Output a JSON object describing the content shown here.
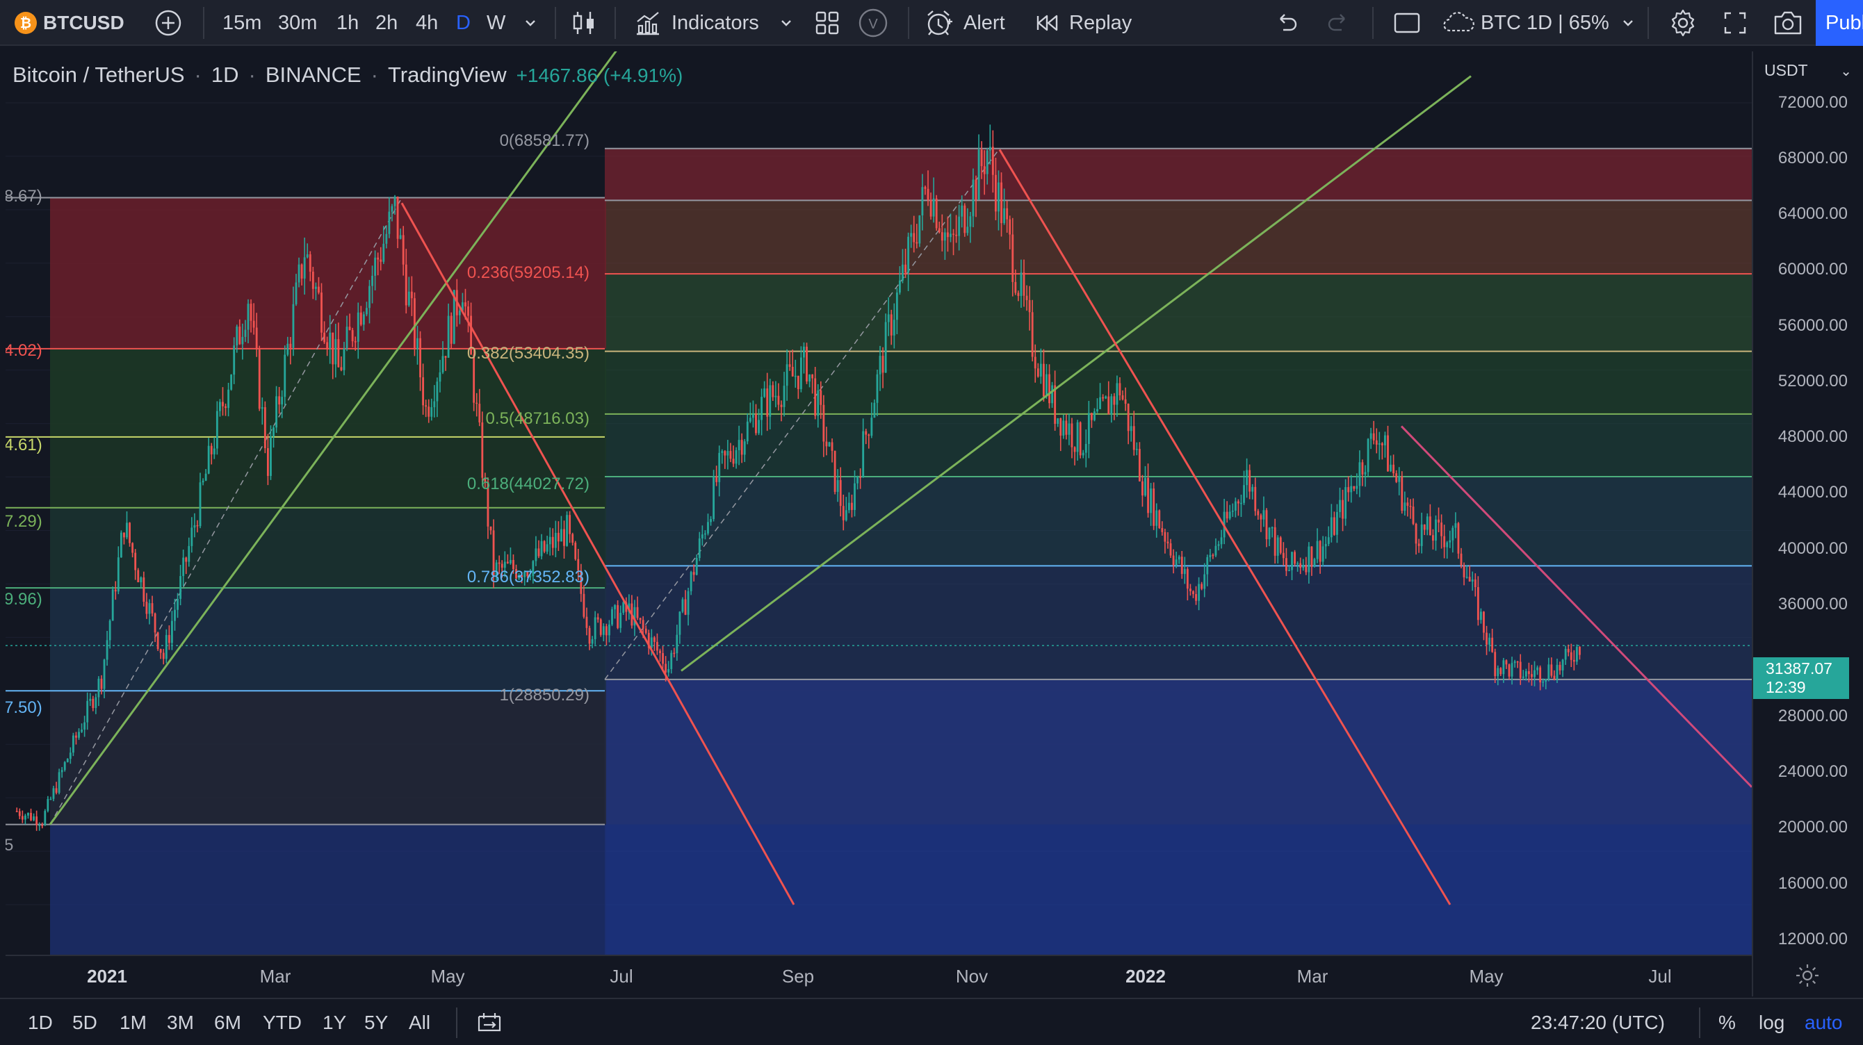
{
  "toolbar": {
    "symbol": "BTCUSD",
    "intervals": [
      "15m",
      "30m",
      "1h",
      "2h",
      "4h",
      "D",
      "W"
    ],
    "active_interval": "D",
    "indicators_label": "Indicators",
    "v_badge": "V",
    "alert_label": "Alert",
    "replay_label": "Replay",
    "layout_name": "BTC 1D | 65%",
    "publish_label": "Publish",
    "btc_glyph": "₿"
  },
  "legend": {
    "pair": "Bitcoin / TetherUS",
    "interval": "1D",
    "exchange": "BINANCE",
    "source": "TradingView",
    "change": "+1467.86 (+4.91%)",
    "sep": "·"
  },
  "fib_labels": {
    "level_0": "0(68581.77)",
    "level_0236": "0.236(59205.14)",
    "level_0382": "0.382(53404.35)",
    "level_05": "0.5(48716.03)",
    "level_0618": "0.618(44027.72)",
    "level_0786": "0.786(37352.83)",
    "level_1": "1(28850.29)",
    "left_1": "8.67)",
    "left_2": "4.02)",
    "left_3": "4.61)",
    "left_4": "7.29)",
    "left_5": "9.96)",
    "left_6": "7.50)",
    "left_7": "5"
  },
  "price_axis": {
    "currency": "USDT",
    "chevron": "⌄",
    "ticks": [
      "72000.00",
      "68000.00",
      "64000.00",
      "60000.00",
      "56000.00",
      "52000.00",
      "48000.00",
      "44000.00",
      "40000.00",
      "36000.00",
      "28000.00",
      "24000.00",
      "20000.00",
      "16000.00",
      "12000.00"
    ],
    "last_price": "31387.07",
    "countdown": "12:39"
  },
  "time_axis": {
    "ticks": [
      "2021",
      "Mar",
      "May",
      "Jul",
      "Sep",
      "Nov",
      "2022",
      "Mar",
      "May",
      "Jul"
    ]
  },
  "bottom": {
    "ranges": [
      "1D",
      "5D",
      "1M",
      "3M",
      "6M",
      "YTD",
      "1Y",
      "5Y",
      "All"
    ],
    "clock": "23:47:20 (UTC)",
    "pct": "%",
    "log": "log",
    "auto": "auto"
  },
  "chart_data": {
    "type": "candlestick",
    "title": "Bitcoin / TetherUS · 1D · BINANCE",
    "ylim": [
      10000,
      74000
    ],
    "x_range": [
      "2020-11-27",
      "2022-08-08"
    ],
    "close_series": [
      [
        "2020-12-01",
        19000
      ],
      [
        "2020-12-10",
        18300
      ],
      [
        "2020-12-20",
        23500
      ],
      [
        "2020-12-31",
        29000
      ],
      [
        "2021-01-08",
        40500
      ],
      [
        "2021-01-22",
        30500
      ],
      [
        "2021-02-08",
        46000
      ],
      [
        "2021-02-21",
        57500
      ],
      [
        "2021-02-28",
        45000
      ],
      [
        "2021-03-13",
        61000
      ],
      [
        "2021-03-25",
        52000
      ],
      [
        "2021-04-14",
        64000
      ],
      [
        "2021-04-25",
        49000
      ],
      [
        "2021-05-08",
        58500
      ],
      [
        "2021-05-19",
        37000
      ],
      [
        "2021-05-31",
        37300
      ],
      [
        "2021-06-14",
        40000
      ],
      [
        "2021-06-22",
        32500
      ],
      [
        "2021-07-06",
        34000
      ],
      [
        "2021-07-20",
        29800
      ],
      [
        "2021-08-07",
        44500
      ],
      [
        "2021-08-22",
        49300
      ],
      [
        "2021-09-07",
        52500
      ],
      [
        "2021-09-21",
        40500
      ],
      [
        "2021-10-06",
        55000
      ],
      [
        "2021-10-20",
        66000
      ],
      [
        "2021-10-28",
        61000
      ],
      [
        "2021-11-10",
        68500
      ],
      [
        "2021-11-26",
        54000
      ],
      [
        "2021-12-04",
        49000
      ],
      [
        "2021-12-13",
        46500
      ],
      [
        "2021-12-27",
        50700
      ],
      [
        "2022-01-05",
        43000
      ],
      [
        "2022-01-22",
        35000
      ],
      [
        "2022-02-10",
        44000
      ],
      [
        "2022-02-24",
        37000
      ],
      [
        "2022-03-10",
        39000
      ],
      [
        "2022-03-28",
        47500
      ],
      [
        "2022-04-11",
        40000
      ],
      [
        "2022-04-25",
        39500
      ],
      [
        "2022-05-09",
        30000
      ],
      [
        "2022-05-20",
        29200
      ],
      [
        "2022-06-01",
        29800
      ],
      [
        "2022-06-08",
        31387
      ]
    ],
    "fib_retracements": [
      {
        "from": 28850.29,
        "to": 68581.77,
        "levels": [
          {
            "ratio": 0,
            "price": 68581.77
          },
          {
            "ratio": 0.236,
            "price": 59205.14
          },
          {
            "ratio": 0.382,
            "price": 53404.35
          },
          {
            "ratio": 0.5,
            "price": 48716.03
          },
          {
            "ratio": 0.618,
            "price": 44027.72
          },
          {
            "ratio": 0.786,
            "price": 37352.83
          },
          {
            "ratio": 1,
            "price": 28850.29
          }
        ]
      }
    ],
    "colors": {
      "up": "#26a69a",
      "down": "#ef5350",
      "green_line": "#7cb35a",
      "red_line": "#ef5350",
      "pink_line": "#d14a7a"
    }
  }
}
